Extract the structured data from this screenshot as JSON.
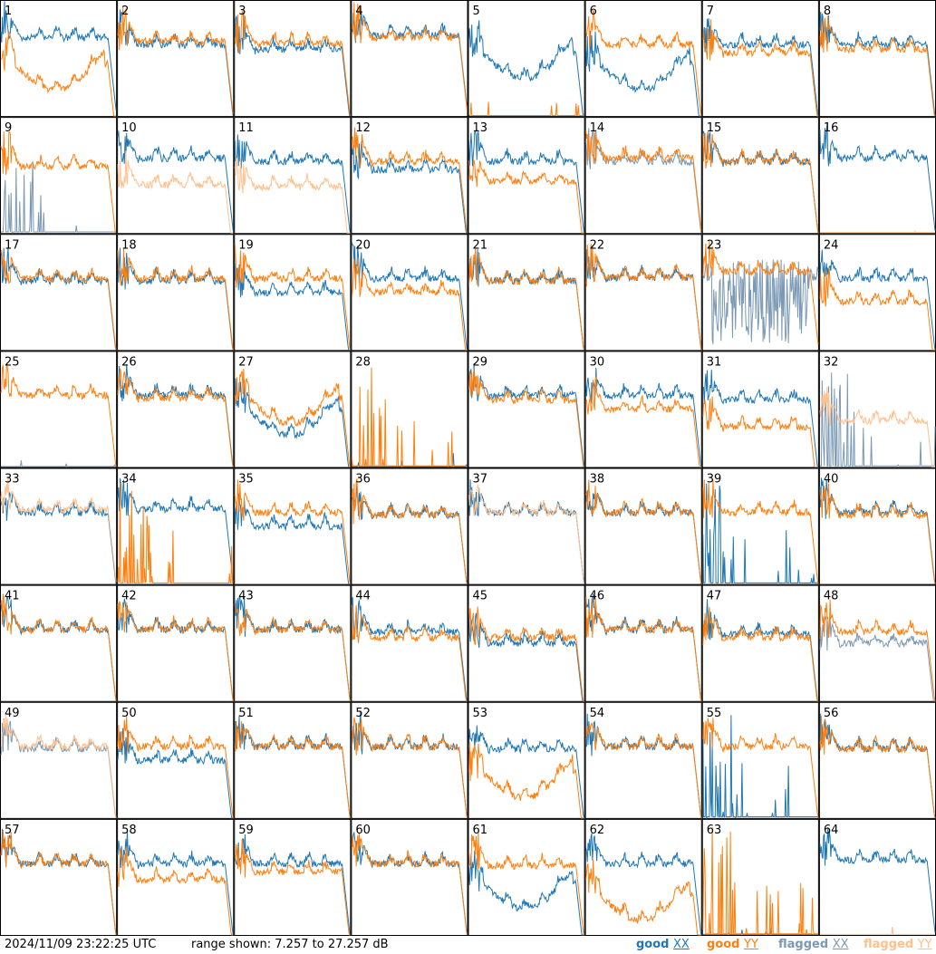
{
  "chart_data": {
    "type": "line",
    "layout": "8x8 small multiples, one panel per tile",
    "timestamp": "2024/11/09 23:22:25 UTC",
    "range_text": "range shown: 7.257 to 27.257 dB",
    "ylim": [
      7.257,
      27.257
    ],
    "unit": "dB",
    "legend": [
      {
        "key": "good_xx",
        "label": "good",
        "pol": "XX",
        "color": "#1f77b4"
      },
      {
        "key": "good_yy",
        "label": "good",
        "pol": "YY",
        "color": "#ff7f0e"
      },
      {
        "key": "flagged_xx",
        "label": "flagged",
        "pol": "XX",
        "color": "#7b99b4"
      },
      {
        "key": "flagged_yy",
        "label": "flagged",
        "pol": "YY",
        "color": "#ffc08c"
      }
    ],
    "tiles": [
      {
        "id": 1,
        "xx": {
          "state": "good",
          "level": 0.68
        },
        "yy": {
          "state": "good",
          "level": 0.45,
          "pattern": "dip"
        }
      },
      {
        "id": 2,
        "xx": {
          "state": "good",
          "level": 0.62
        },
        "yy": {
          "state": "good",
          "level": 0.65
        }
      },
      {
        "id": 3,
        "xx": {
          "state": "good",
          "level": 0.58
        },
        "yy": {
          "state": "good",
          "level": 0.63
        }
      },
      {
        "id": 4,
        "xx": {
          "state": "good",
          "level": 0.7
        },
        "yy": {
          "state": "good",
          "level": 0.68
        }
      },
      {
        "id": 5,
        "xx": {
          "state": "good",
          "level": 0.55,
          "pattern": "dip"
        },
        "yy": {
          "state": "good",
          "pattern": "dead"
        }
      },
      {
        "id": 6,
        "xx": {
          "state": "good",
          "level": 0.45,
          "pattern": "dip"
        },
        "yy": {
          "state": "good",
          "level": 0.62
        }
      },
      {
        "id": 7,
        "xx": {
          "state": "good",
          "level": 0.62
        },
        "yy": {
          "state": "good",
          "level": 0.55
        }
      },
      {
        "id": 8,
        "xx": {
          "state": "good",
          "level": 0.62
        },
        "yy": {
          "state": "good",
          "level": 0.58
        }
      },
      {
        "id": 9,
        "xx": {
          "state": "flagged",
          "pattern": "spikes"
        },
        "yy": {
          "state": "good",
          "level": 0.58
        }
      },
      {
        "id": 10,
        "xx": {
          "state": "good",
          "level": 0.65
        },
        "yy": {
          "state": "flagged",
          "level": 0.42
        }
      },
      {
        "id": 11,
        "xx": {
          "state": "good",
          "level": 0.62
        },
        "yy": {
          "state": "flagged",
          "level": 0.4
        }
      },
      {
        "id": 12,
        "xx": {
          "state": "good",
          "level": 0.55
        },
        "yy": {
          "state": "good",
          "level": 0.62
        }
      },
      {
        "id": 13,
        "xx": {
          "state": "good",
          "level": 0.62
        },
        "yy": {
          "state": "good",
          "level": 0.45
        }
      },
      {
        "id": 14,
        "xx": {
          "state": "flagged",
          "level": 0.62
        },
        "yy": {
          "state": "good",
          "level": 0.65
        }
      },
      {
        "id": 15,
        "xx": {
          "state": "good",
          "level": 0.62
        },
        "yy": {
          "state": "good",
          "level": 0.62
        }
      },
      {
        "id": 16,
        "xx": {
          "state": "good",
          "level": 0.65
        },
        "yy": {
          "state": "flagged",
          "pattern": "dead"
        }
      },
      {
        "id": 17,
        "xx": {
          "state": "good",
          "level": 0.6
        },
        "yy": {
          "state": "good",
          "level": 0.62
        }
      },
      {
        "id": 18,
        "xx": {
          "state": "good",
          "level": 0.6
        },
        "yy": {
          "state": "good",
          "level": 0.62
        }
      },
      {
        "id": 19,
        "xx": {
          "state": "good",
          "level": 0.5
        },
        "yy": {
          "state": "good",
          "level": 0.62
        }
      },
      {
        "id": 20,
        "xx": {
          "state": "good",
          "level": 0.62
        },
        "yy": {
          "state": "good",
          "level": 0.5
        }
      },
      {
        "id": 21,
        "xx": {
          "state": "good",
          "level": 0.6
        },
        "yy": {
          "state": "good",
          "level": 0.6
        }
      },
      {
        "id": 22,
        "xx": {
          "state": "good",
          "level": 0.63
        },
        "yy": {
          "state": "good",
          "level": 0.63
        }
      },
      {
        "id": 23,
        "xx": {
          "state": "flagged",
          "pattern": "noise"
        },
        "yy": {
          "state": "good",
          "level": 0.68
        }
      },
      {
        "id": 24,
        "xx": {
          "state": "good",
          "level": 0.62
        },
        "yy": {
          "state": "good",
          "level": 0.42
        }
      },
      {
        "id": 25,
        "xx": {
          "state": "flagged",
          "pattern": "dead"
        },
        "yy": {
          "state": "good",
          "level": 0.62
        }
      },
      {
        "id": 26,
        "xx": {
          "state": "good",
          "level": 0.62
        },
        "yy": {
          "state": "good",
          "level": 0.6
        }
      },
      {
        "id": 27,
        "xx": {
          "state": "good",
          "level": 0.5,
          "pattern": "dip"
        },
        "yy": {
          "state": "good",
          "level": 0.6,
          "pattern": "dip"
        }
      },
      {
        "id": 28,
        "xx": {
          "state": "good",
          "pattern": "dead"
        },
        "yy": {
          "state": "good",
          "pattern": "spikes"
        }
      },
      {
        "id": 29,
        "xx": {
          "state": "good",
          "level": 0.62
        },
        "yy": {
          "state": "good",
          "level": 0.58
        }
      },
      {
        "id": 30,
        "xx": {
          "state": "good",
          "level": 0.62
        },
        "yy": {
          "state": "good",
          "level": 0.5
        }
      },
      {
        "id": 31,
        "xx": {
          "state": "good",
          "level": 0.58
        },
        "yy": {
          "state": "good",
          "level": 0.35
        }
      },
      {
        "id": 32,
        "xx": {
          "state": "flagged",
          "pattern": "spikes"
        },
        "yy": {
          "state": "flagged",
          "level": 0.4
        }
      },
      {
        "id": 33,
        "xx": {
          "state": "good",
          "level": 0.62
        },
        "yy": {
          "state": "flagged",
          "level": 0.65
        }
      },
      {
        "id": 34,
        "xx": {
          "state": "good",
          "level": 0.65
        },
        "yy": {
          "state": "good",
          "pattern": "spikes"
        }
      },
      {
        "id": 35,
        "xx": {
          "state": "good",
          "level": 0.5
        },
        "yy": {
          "state": "good",
          "level": 0.62
        }
      },
      {
        "id": 36,
        "xx": {
          "state": "good",
          "level": 0.6
        },
        "yy": {
          "state": "good",
          "level": 0.6
        }
      },
      {
        "id": 37,
        "xx": {
          "state": "good",
          "level": 0.62
        },
        "yy": {
          "state": "flagged",
          "level": 0.62
        }
      },
      {
        "id": 38,
        "xx": {
          "state": "good",
          "level": 0.62
        },
        "yy": {
          "state": "good",
          "level": 0.62
        }
      },
      {
        "id": 39,
        "xx": {
          "state": "good",
          "pattern": "spikes"
        },
        "yy": {
          "state": "good",
          "level": 0.62
        }
      },
      {
        "id": 40,
        "xx": {
          "state": "good",
          "level": 0.62
        },
        "yy": {
          "state": "good",
          "level": 0.6
        }
      },
      {
        "id": 41,
        "xx": {
          "state": "good",
          "level": 0.62
        },
        "yy": {
          "state": "good",
          "level": 0.62
        }
      },
      {
        "id": 42,
        "xx": {
          "state": "good",
          "level": 0.62
        },
        "yy": {
          "state": "good",
          "level": 0.62
        }
      },
      {
        "id": 43,
        "xx": {
          "state": "good",
          "level": 0.62
        },
        "yy": {
          "state": "good",
          "level": 0.62
        }
      },
      {
        "id": 44,
        "xx": {
          "state": "good",
          "level": 0.6
        },
        "yy": {
          "state": "good",
          "level": 0.55
        }
      },
      {
        "id": 45,
        "xx": {
          "state": "good",
          "level": 0.5
        },
        "yy": {
          "state": "good",
          "level": 0.55
        }
      },
      {
        "id": 46,
        "xx": {
          "state": "good",
          "level": 0.62
        },
        "yy": {
          "state": "good",
          "level": 0.62
        }
      },
      {
        "id": 47,
        "xx": {
          "state": "good",
          "level": 0.58
        },
        "yy": {
          "state": "good",
          "level": 0.55
        }
      },
      {
        "id": 48,
        "xx": {
          "state": "flagged",
          "level": 0.5
        },
        "yy": {
          "state": "good",
          "level": 0.6
        }
      },
      {
        "id": 49,
        "xx": {
          "state": "flagged",
          "level": 0.6
        },
        "yy": {
          "state": "flagged",
          "level": 0.62
        }
      },
      {
        "id": 50,
        "xx": {
          "state": "good",
          "level": 0.5
        },
        "yy": {
          "state": "good",
          "level": 0.62
        }
      },
      {
        "id": 51,
        "xx": {
          "state": "good",
          "level": 0.62
        },
        "yy": {
          "state": "good",
          "level": 0.62
        }
      },
      {
        "id": 52,
        "xx": {
          "state": "good",
          "level": 0.62
        },
        "yy": {
          "state": "good",
          "level": 0.62
        }
      },
      {
        "id": 53,
        "xx": {
          "state": "good",
          "level": 0.6
        },
        "yy": {
          "state": "good",
          "level": 0.4,
          "pattern": "dip"
        }
      },
      {
        "id": 54,
        "xx": {
          "state": "good",
          "level": 0.62
        },
        "yy": {
          "state": "good",
          "level": 0.62
        }
      },
      {
        "id": 55,
        "xx": {
          "state": "good",
          "pattern": "spikes"
        },
        "yy": {
          "state": "good",
          "level": 0.62
        }
      },
      {
        "id": 56,
        "xx": {
          "state": "good",
          "level": 0.6
        },
        "yy": {
          "state": "good",
          "level": 0.6
        }
      },
      {
        "id": 57,
        "xx": {
          "state": "good",
          "level": 0.62
        },
        "yy": {
          "state": "good",
          "level": 0.62
        }
      },
      {
        "id": 58,
        "xx": {
          "state": "good",
          "level": 0.62
        },
        "yy": {
          "state": "good",
          "level": 0.48
        }
      },
      {
        "id": 59,
        "xx": {
          "state": "good",
          "level": 0.62
        },
        "yy": {
          "state": "good",
          "level": 0.55
        }
      },
      {
        "id": 60,
        "xx": {
          "state": "good",
          "level": 0.62
        },
        "yy": {
          "state": "good",
          "level": 0.62
        }
      },
      {
        "id": 61,
        "xx": {
          "state": "good",
          "level": 0.45,
          "pattern": "dip"
        },
        "yy": {
          "state": "good",
          "level": 0.6
        }
      },
      {
        "id": 62,
        "xx": {
          "state": "good",
          "level": 0.62
        },
        "yy": {
          "state": "good",
          "level": 0.35,
          "pattern": "dip"
        }
      },
      {
        "id": 63,
        "xx": {
          "state": "good",
          "pattern": "dead"
        },
        "yy": {
          "state": "good",
          "pattern": "spikes"
        }
      },
      {
        "id": 64,
        "xx": {
          "state": "good",
          "level": 0.65
        },
        "yy": {
          "state": "flagged",
          "pattern": "dead"
        }
      }
    ]
  }
}
